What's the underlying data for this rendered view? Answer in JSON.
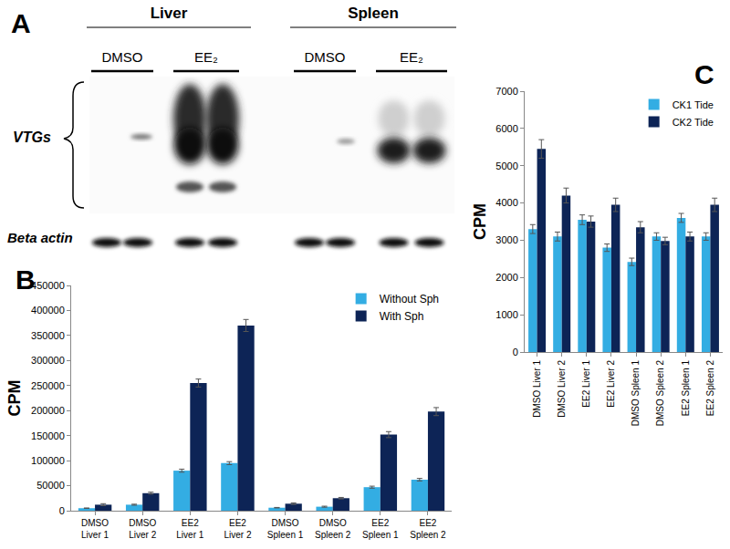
{
  "blot": {
    "label": "A",
    "groups": [
      {
        "label": "Liver",
        "lanes": [
          {
            "label": "DMSO"
          },
          {
            "label": "EE₂"
          }
        ]
      },
      {
        "label": "Spleen",
        "lanes": [
          {
            "label": "DMSO"
          },
          {
            "label": "EE₂"
          }
        ]
      }
    ],
    "rows": [
      {
        "label": "VTGs"
      },
      {
        "label": "Beta actin"
      }
    ]
  },
  "chart_data": [
    {
      "type": "bar",
      "annotations": [
        "B"
      ],
      "y_label": "CPM",
      "categories": [
        "DMSO Liver 1",
        "DMSO Liver 2",
        "EE2 Liver 1",
        "EE2 Liver 2",
        "DMSO Spleen 1",
        "DMSO Spleen 2",
        "EE2 Spleen 1",
        "EE2 Spleen 2"
      ],
      "series": [
        {
          "name": "Without Sph",
          "color": "#33ade3",
          "values": [
            5000,
            12000,
            80000,
            95000,
            6000,
            8000,
            47000,
            62000
          ],
          "errors": [
            500,
            1000,
            3000,
            3000,
            500,
            1000,
            2000,
            2500
          ]
        },
        {
          "name": "With Sph",
          "color": "#0d2456",
          "values": [
            12000,
            35000,
            255000,
            370000,
            14000,
            25000,
            152000,
            198000
          ],
          "errors": [
            2000,
            2000,
            8000,
            12000,
            1500,
            1500,
            6000,
            8000
          ]
        }
      ],
      "ylim": [
        0,
        450000
      ],
      "yticks": [
        0,
        50000,
        100000,
        150000,
        200000,
        250000,
        300000,
        350000,
        400000,
        450000
      ],
      "grid": false,
      "legend": "upper right"
    },
    {
      "type": "bar",
      "annotations": [
        "C"
      ],
      "y_label": "CPM",
      "categories": [
        "DMSO Liver 1",
        "DMSO Liver 2",
        "EE2 Liver 1",
        "EE2 Liver 2",
        "DMSO Spleen 1",
        "DMSO Spleen 2",
        "EE2 Spleen 1",
        "EE2 Spleen 2"
      ],
      "series": [
        {
          "name": "CK1 Tide",
          "color": "#33ade3",
          "values": [
            3300,
            3100,
            3550,
            2800,
            2420,
            3100,
            3600,
            3100
          ],
          "errors": [
            120,
            120,
            130,
            100,
            100,
            100,
            120,
            100
          ]
        },
        {
          "name": "CK2 Tide",
          "color": "#0d2456",
          "values": [
            5450,
            4200,
            3500,
            3950,
            3350,
            2980,
            3100,
            3950
          ],
          "errors": [
            250,
            200,
            150,
            180,
            150,
            100,
            120,
            180
          ]
        }
      ],
      "ylim": [
        0,
        7000
      ],
      "yticks": [
        0,
        1000,
        2000,
        3000,
        4000,
        5000,
        6000,
        7000
      ],
      "grid": false,
      "legend": "upper right"
    }
  ]
}
